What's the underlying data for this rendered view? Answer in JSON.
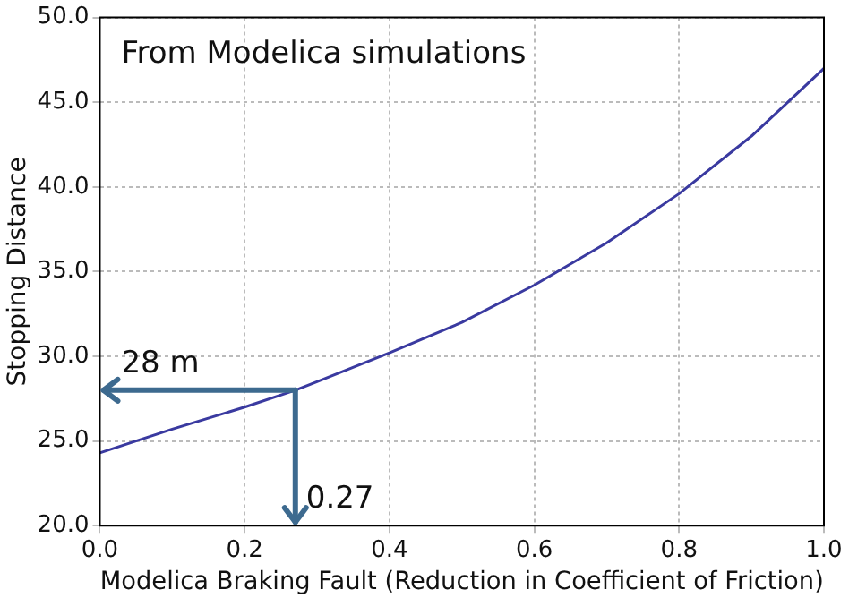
{
  "chart_data": {
    "type": "line",
    "xlabel": "Modelica Braking Fault (Reduction in Coefficient of Friction)",
    "ylabel": "Stopping Distance",
    "x": [
      0,
      0.1,
      0.2,
      0.27,
      0.3,
      0.4,
      0.5,
      0.6,
      0.7,
      0.8,
      0.9,
      1.0
    ],
    "series": [
      {
        "color": "#3a3aa0",
        "values": [
          24.3,
          25.7,
          27.0,
          28.0,
          28.5,
          30.2,
          32.0,
          34.2,
          36.7,
          39.6,
          43.0,
          47.0
        ]
      }
    ],
    "xlim": [
      0,
      1
    ],
    "ylim": [
      20,
      50
    ],
    "xticks": [
      {
        "value": 0,
        "label": "0.0"
      },
      {
        "value": 0.2,
        "label": "0.2"
      },
      {
        "value": 0.4,
        "label": "0.4"
      },
      {
        "value": 0.6,
        "label": "0.6"
      },
      {
        "value": 0.8,
        "label": "0.8"
      },
      {
        "value": 1,
        "label": "1.0"
      }
    ],
    "yticks": [
      {
        "value": 20,
        "label": "20.0"
      },
      {
        "value": 25,
        "label": "25.0"
      },
      {
        "value": 30,
        "label": "30.0"
      },
      {
        "value": 35,
        "label": "35.0"
      },
      {
        "value": 40,
        "label": "40.0"
      },
      {
        "value": 45,
        "label": "45.0"
      },
      {
        "value": 50,
        "label": "50.0"
      }
    ],
    "annotations": [
      "From Modelica simulations",
      {
        "text": "28 m",
        "x": 0.27,
        "y": 28
      },
      {
        "text": "0.27",
        "x": 0.27,
        "y": 28
      }
    ],
    "grid": true,
    "line_style": "solid",
    "marker": "none",
    "legend": false
  }
}
